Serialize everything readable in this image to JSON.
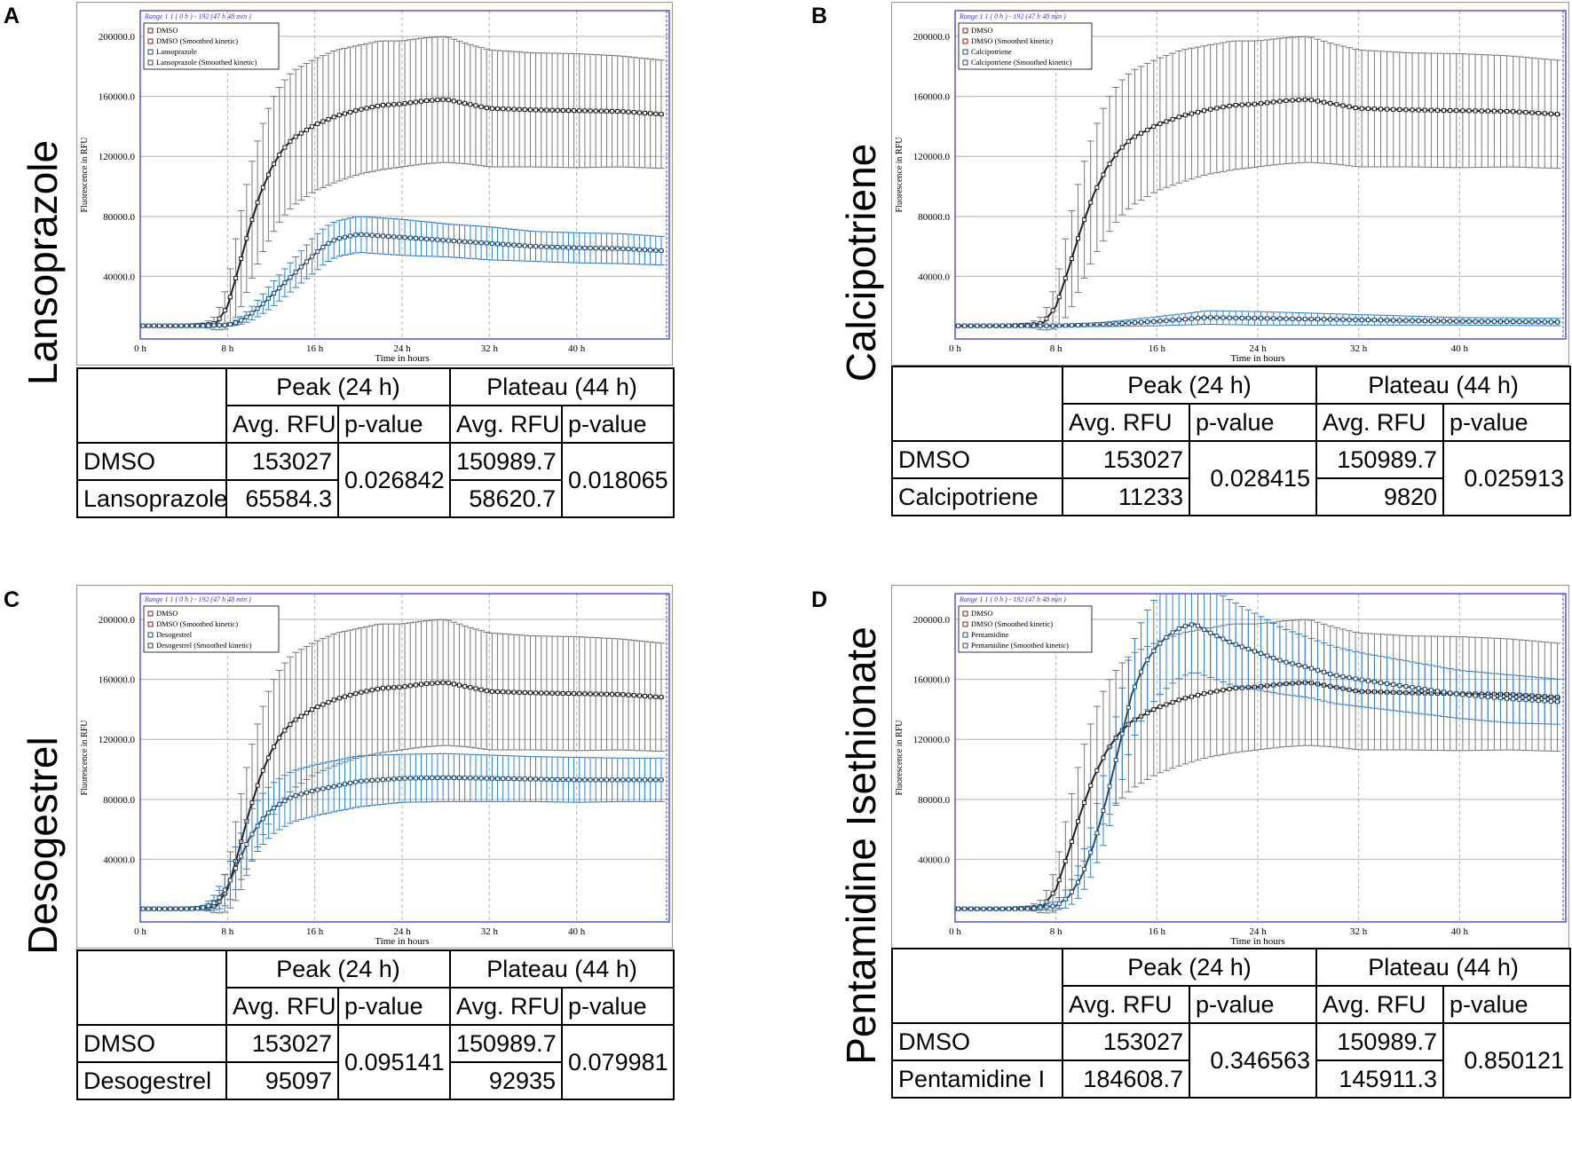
{
  "chart_data": [
    {
      "panel": "A",
      "type": "line",
      "title": "Lansoprazole",
      "range_label": "Range 1 1 ( 0 h ) - 192 (47 h 48 min )",
      "xlabel": "Time in hours",
      "ylabel": "Fluorescence in RFU",
      "xlim": [
        0,
        48
      ],
      "ylim": [
        0,
        216000
      ],
      "x_ticks": [
        "0 h",
        "8 h",
        "16 h",
        "24 h",
        "32 h",
        "40 h"
      ],
      "y_ticks": [
        "40000.0",
        "80000.0",
        "120000.0",
        "160000.0",
        "200000.0"
      ],
      "legend": [
        "DMSO",
        "DMSO (Smoothed kinetic)",
        "Lansoprazole",
        "Lansoprazole (Smoothed kinetic)"
      ],
      "series": [
        {
          "name": "DMSO",
          "color": "#202020",
          "error_color": "#777777",
          "x": [
            0,
            4,
            6,
            7,
            8,
            9,
            10,
            11,
            12,
            13,
            14,
            16,
            18,
            20,
            22,
            24,
            26,
            28,
            30,
            32,
            36,
            40,
            44,
            48
          ],
          "y": [
            7000,
            7000,
            7500,
            9000,
            20000,
            45000,
            72000,
            95000,
            112000,
            124000,
            132000,
            141000,
            147000,
            151000,
            154000,
            155000,
            157000,
            158000,
            155000,
            152000,
            151000,
            150500,
            150000,
            148000
          ],
          "err": [
            600,
            600,
            1500,
            5000,
            15000,
            30000,
            38000,
            42000,
            45000,
            45000,
            45000,
            44000,
            44000,
            43000,
            43000,
            42000,
            42000,
            42000,
            40000,
            39000,
            38000,
            38000,
            37000,
            36000
          ]
        },
        {
          "name": "Lansoprazole",
          "color": "#1f4e79",
          "error_color": "#2e7fd6",
          "x": [
            0,
            6,
            8,
            9,
            10,
            11,
            12,
            13,
            14,
            15,
            16,
            17,
            18,
            20,
            22,
            24,
            28,
            32,
            36,
            40,
            44,
            48
          ],
          "y": [
            7000,
            7000,
            7500,
            9500,
            14000,
            20000,
            27000,
            34000,
            41000,
            48000,
            55000,
            61000,
            65000,
            68000,
            67000,
            66000,
            64000,
            62000,
            60000,
            59000,
            58500,
            57000
          ],
          "err": [
            500,
            500,
            800,
            2000,
            4000,
            6000,
            8000,
            9000,
            10000,
            11000,
            12000,
            12000,
            12000,
            12000,
            12000,
            12000,
            11000,
            11000,
            10000,
            10000,
            10000,
            9500
          ]
        }
      ],
      "table": {
        "col_groups": [
          "Peak (24 h)",
          "Plateau (44 h)"
        ],
        "sub_headers": [
          "Avg. RFU",
          "p-value",
          "Avg. RFU",
          "p-value"
        ],
        "row_labels": [
          "DMSO",
          "Lansoprazole"
        ],
        "peak_values": [
          "153027",
          "65584.3"
        ],
        "peak_p": "0.026842",
        "plateau_values": [
          "150989.7",
          "58620.7"
        ],
        "plateau_p": "0.018065"
      }
    },
    {
      "panel": "B",
      "type": "line",
      "title": "Calcipotriene",
      "range_label": "Range 1 1 ( 0 h ) - 192 (47 h 48 min )",
      "xlabel": "Time in hours",
      "ylabel": "Fluorescence in RFU",
      "xlim": [
        0,
        48
      ],
      "ylim": [
        0,
        216000
      ],
      "x_ticks": [
        "0 h",
        "8 h",
        "16 h",
        "24 h",
        "32 h",
        "40 h"
      ],
      "y_ticks": [
        "40000.0",
        "80000.0",
        "120000.0",
        "160000.0",
        "200000.0"
      ],
      "legend": [
        "DMSO",
        "DMSO (Smoothed kinetic)",
        "Calcipotriene",
        "Calcipotriene (Smoothed kinetic)"
      ],
      "series": [
        {
          "name": "DMSO",
          "color": "#202020",
          "error_color": "#777777",
          "x": [
            0,
            4,
            6,
            7,
            8,
            9,
            10,
            11,
            12,
            13,
            14,
            16,
            18,
            20,
            22,
            24,
            26,
            28,
            30,
            32,
            36,
            40,
            44,
            48
          ],
          "y": [
            7000,
            7000,
            7500,
            9000,
            20000,
            45000,
            72000,
            95000,
            112000,
            124000,
            132000,
            141000,
            147000,
            151000,
            154000,
            155000,
            157000,
            158000,
            155000,
            152000,
            151000,
            150500,
            150000,
            148000
          ],
          "err": [
            600,
            600,
            1500,
            5000,
            15000,
            30000,
            38000,
            42000,
            45000,
            45000,
            45000,
            44000,
            44000,
            43000,
            43000,
            42000,
            42000,
            42000,
            40000,
            39000,
            38000,
            38000,
            37000,
            36000
          ]
        },
        {
          "name": "Calcipotriene",
          "color": "#1f4e79",
          "error_color": "#2e7fd6",
          "x": [
            0,
            8,
            12,
            16,
            20,
            24,
            28,
            32,
            36,
            40,
            44,
            48
          ],
          "y": [
            7000,
            7000,
            8000,
            10000,
            12500,
            12000,
            11500,
            11000,
            10500,
            10000,
            9800,
            9500
          ],
          "err": [
            400,
            500,
            1500,
            3000,
            4500,
            4500,
            4000,
            3500,
            3000,
            2500,
            2500,
            2500
          ]
        }
      ],
      "table": {
        "col_groups": [
          "Peak (24 h)",
          "Plateau (44 h)"
        ],
        "sub_headers": [
          "Avg. RFU",
          "p-value",
          "Avg. RFU",
          "p-value"
        ],
        "row_labels": [
          "DMSO",
          "Calcipotriene"
        ],
        "peak_values": [
          "153027",
          "11233"
        ],
        "peak_p": "0.028415",
        "plateau_values": [
          "150989.7",
          "9820"
        ],
        "plateau_p": "0.025913"
      }
    },
    {
      "panel": "C",
      "type": "line",
      "title": "Desogestrel",
      "range_label": "Range 1 1 ( 0 h ) - 192 (47 h 48 min )",
      "xlabel": "Time in hours",
      "ylabel": "Fluorescence in RFU",
      "xlim": [
        0,
        48
      ],
      "ylim": [
        0,
        216000
      ],
      "x_ticks": [
        "0 h",
        "8 h",
        "16 h",
        "24 h",
        "32 h",
        "40 h"
      ],
      "y_ticks": [
        "40000.0",
        "80000.0",
        "120000.0",
        "160000.0",
        "200000.0"
      ],
      "legend": [
        "DMSO",
        "DMSO (Smoothed kinetic)",
        "Desogestrel",
        "Desogestrel (Smoothed kinetic)"
      ],
      "series": [
        {
          "name": "DMSO",
          "color": "#202020",
          "error_color": "#777777",
          "x": [
            0,
            4,
            6,
            7,
            8,
            9,
            10,
            11,
            12,
            13,
            14,
            16,
            18,
            20,
            22,
            24,
            26,
            28,
            30,
            32,
            36,
            40,
            44,
            48
          ],
          "y": [
            7000,
            7000,
            7500,
            9000,
            20000,
            45000,
            72000,
            95000,
            112000,
            124000,
            132000,
            141000,
            147000,
            151000,
            154000,
            155000,
            157000,
            158000,
            155000,
            152000,
            151000,
            150500,
            150000,
            148000
          ],
          "err": [
            600,
            600,
            1500,
            5000,
            15000,
            30000,
            38000,
            42000,
            45000,
            45000,
            45000,
            44000,
            44000,
            43000,
            43000,
            42000,
            42000,
            42000,
            40000,
            39000,
            38000,
            38000,
            37000,
            36000
          ]
        },
        {
          "name": "Desogestrel",
          "color": "#1f4e79",
          "error_color": "#2e7fd6",
          "x": [
            0,
            5,
            6,
            7,
            8,
            9,
            10,
            11,
            12,
            13,
            14,
            16,
            18,
            20,
            24,
            28,
            32,
            36,
            40,
            44,
            48
          ],
          "y": [
            7000,
            7000,
            8000,
            12000,
            22000,
            38000,
            54000,
            65000,
            73000,
            78000,
            82000,
            86000,
            89000,
            92000,
            94000,
            94500,
            94000,
            93500,
            93000,
            93000,
            93000
          ],
          "err": [
            500,
            500,
            2000,
            6000,
            12000,
            15000,
            17000,
            17000,
            17000,
            17000,
            17000,
            17000,
            17000,
            17000,
            16000,
            16000,
            15500,
            15000,
            15000,
            14500,
            14500
          ]
        }
      ],
      "table": {
        "col_groups": [
          "Peak (24 h)",
          "Plateau (44 h)"
        ],
        "sub_headers": [
          "Avg. RFU",
          "p-value",
          "Avg. RFU",
          "p-value"
        ],
        "row_labels": [
          "DMSO",
          "Desogestrel"
        ],
        "peak_values": [
          "153027",
          "95097"
        ],
        "peak_p": "0.095141",
        "plateau_values": [
          "150989.7",
          "92935"
        ],
        "plateau_p": "0.079981"
      }
    },
    {
      "panel": "D",
      "type": "line",
      "title": "Pentamidine Isethionate",
      "range_label": "Range 1 1 ( 0 h ) - 192 (47 h 48 min )",
      "xlabel": "Time in hours",
      "ylabel": "Fluorescence in RFU",
      "xlim": [
        0,
        48
      ],
      "ylim": [
        0,
        216000
      ],
      "x_ticks": [
        "0 h",
        "8 h",
        "16 h",
        "24 h",
        "32 h",
        "40 h"
      ],
      "y_ticks": [
        "40000.0",
        "80000.0",
        "120000.0",
        "160000.0",
        "200000.0"
      ],
      "legend": [
        "DMSO",
        "DMSO (Smoothed kinetic)",
        "Pentamidine",
        "Pentamidine (Smoothed kinetic)"
      ],
      "series": [
        {
          "name": "DMSO",
          "color": "#202020",
          "error_color": "#777777",
          "x": [
            0,
            4,
            6,
            7,
            8,
            9,
            10,
            11,
            12,
            13,
            14,
            16,
            18,
            20,
            22,
            24,
            26,
            28,
            30,
            32,
            36,
            40,
            44,
            48
          ],
          "y": [
            7000,
            7000,
            7500,
            9000,
            20000,
            45000,
            72000,
            95000,
            112000,
            124000,
            132000,
            141000,
            147000,
            151000,
            154000,
            155000,
            157000,
            158000,
            155000,
            152000,
            151000,
            150500,
            150000,
            148000
          ],
          "err": [
            600,
            600,
            1500,
            5000,
            15000,
            30000,
            38000,
            42000,
            45000,
            45000,
            45000,
            44000,
            44000,
            43000,
            43000,
            42000,
            42000,
            42000,
            40000,
            39000,
            38000,
            38000,
            37000,
            36000
          ]
        },
        {
          "name": "Pentamidine",
          "color": "#1f4e79",
          "error_color": "#2e7fd6",
          "x": [
            0,
            6,
            8,
            9,
            10,
            11,
            12,
            13,
            14,
            15,
            16,
            17,
            18,
            19,
            20,
            22,
            24,
            26,
            28,
            30,
            32,
            36,
            40,
            44,
            48
          ],
          "y": [
            7000,
            7000,
            9000,
            15000,
            28000,
            50000,
            80000,
            115000,
            150000,
            170000,
            182000,
            190000,
            195000,
            197000,
            192000,
            184000,
            178000,
            172000,
            168000,
            163000,
            160000,
            155000,
            150000,
            147000,
            145000
          ],
          "err": [
            500,
            800,
            3000,
            7000,
            12000,
            18000,
            25000,
            30000,
            32000,
            33000,
            34000,
            34000,
            33000,
            32000,
            30000,
            28000,
            25000,
            22000,
            20000,
            19000,
            18000,
            17000,
            16000,
            16000,
            15000
          ]
        }
      ],
      "table": {
        "col_groups": [
          "Peak (24 h)",
          "Plateau (44 h)"
        ],
        "sub_headers": [
          "Avg. RFU",
          "p-value",
          "Avg. RFU",
          "p-value"
        ],
        "row_labels": [
          "DMSO",
          "Pentamidine I"
        ],
        "peak_values": [
          "153027",
          "184608.7"
        ],
        "peak_p": "0.346563",
        "plateau_values": [
          "150989.7",
          "145911.3"
        ],
        "plateau_p": "0.850121"
      }
    }
  ]
}
